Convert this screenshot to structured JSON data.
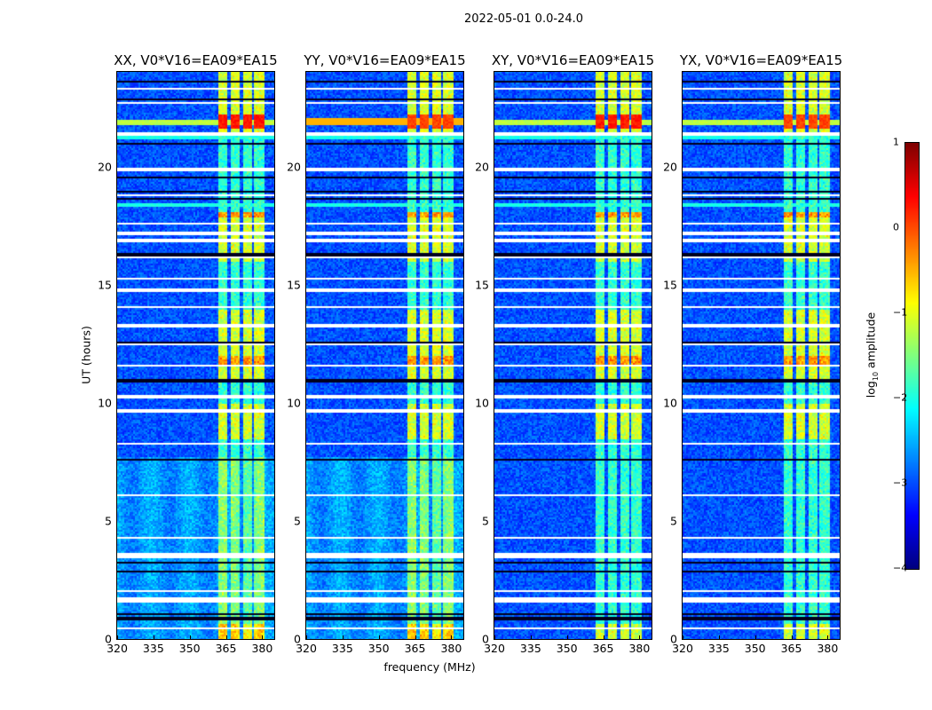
{
  "chart_data": {
    "type": "heatmap",
    "title": "2022-05-01 0.0-24.0",
    "panels": [
      {
        "title": "XX, V0*V16=EA09*EA15"
      },
      {
        "title": "YY, V0*V16=EA09*EA15"
      },
      {
        "title": "XY, V0*V16=EA09*EA15"
      },
      {
        "title": "YX, V0*V16=EA09*EA15"
      }
    ],
    "xlabel": "frequency (MHz)",
    "ylabel": "UT (hours)",
    "xlim": [
      320,
      385
    ],
    "ylim": [
      0,
      24
    ],
    "xticks": [
      "320",
      "335",
      "350",
      "365",
      "380"
    ],
    "xtick_values": [
      320,
      335,
      350,
      365,
      380
    ],
    "yticks": [
      "0",
      "5",
      "10",
      "15",
      "20"
    ],
    "ytick_values": [
      0,
      5,
      10,
      15,
      20
    ],
    "colorbar": {
      "label": "log10 amplitude",
      "label_main": "log",
      "label_sub": "10",
      "label_rest": " amplitude",
      "range": [
        -4,
        1
      ],
      "ticks": [
        "1",
        "0",
        "−1",
        "−2",
        "−3",
        "−4"
      ],
      "tick_values": [
        1,
        0,
        -1,
        -2,
        -3,
        -4
      ],
      "colormap": "jet"
    },
    "rfi_subbands_mhz": [
      [
        361.5,
        365.5
      ],
      [
        366.5,
        370.5
      ],
      [
        371.5,
        375.5
      ],
      [
        376.5,
        380.5
      ]
    ],
    "flagged_hours": [
      0.5,
      1.65,
      1.75,
      2.05,
      3.5,
      3.6,
      4.3,
      6.1,
      8.3,
      9.7,
      10.3,
      11.6,
      12.5,
      13.3,
      14.1,
      14.75,
      14.85,
      15.3,
      16.2,
      16.9,
      17.2,
      17.6,
      18.8,
      19.9,
      21.4,
      22.7,
      23.3
    ],
    "dark_hours": [
      0.9,
      1.1,
      2.9,
      3.3,
      7.6,
      10.9,
      11.0,
      12.6,
      16.3,
      18.7,
      19.0,
      19.6,
      21.0,
      22.9,
      23.6
    ]
  }
}
